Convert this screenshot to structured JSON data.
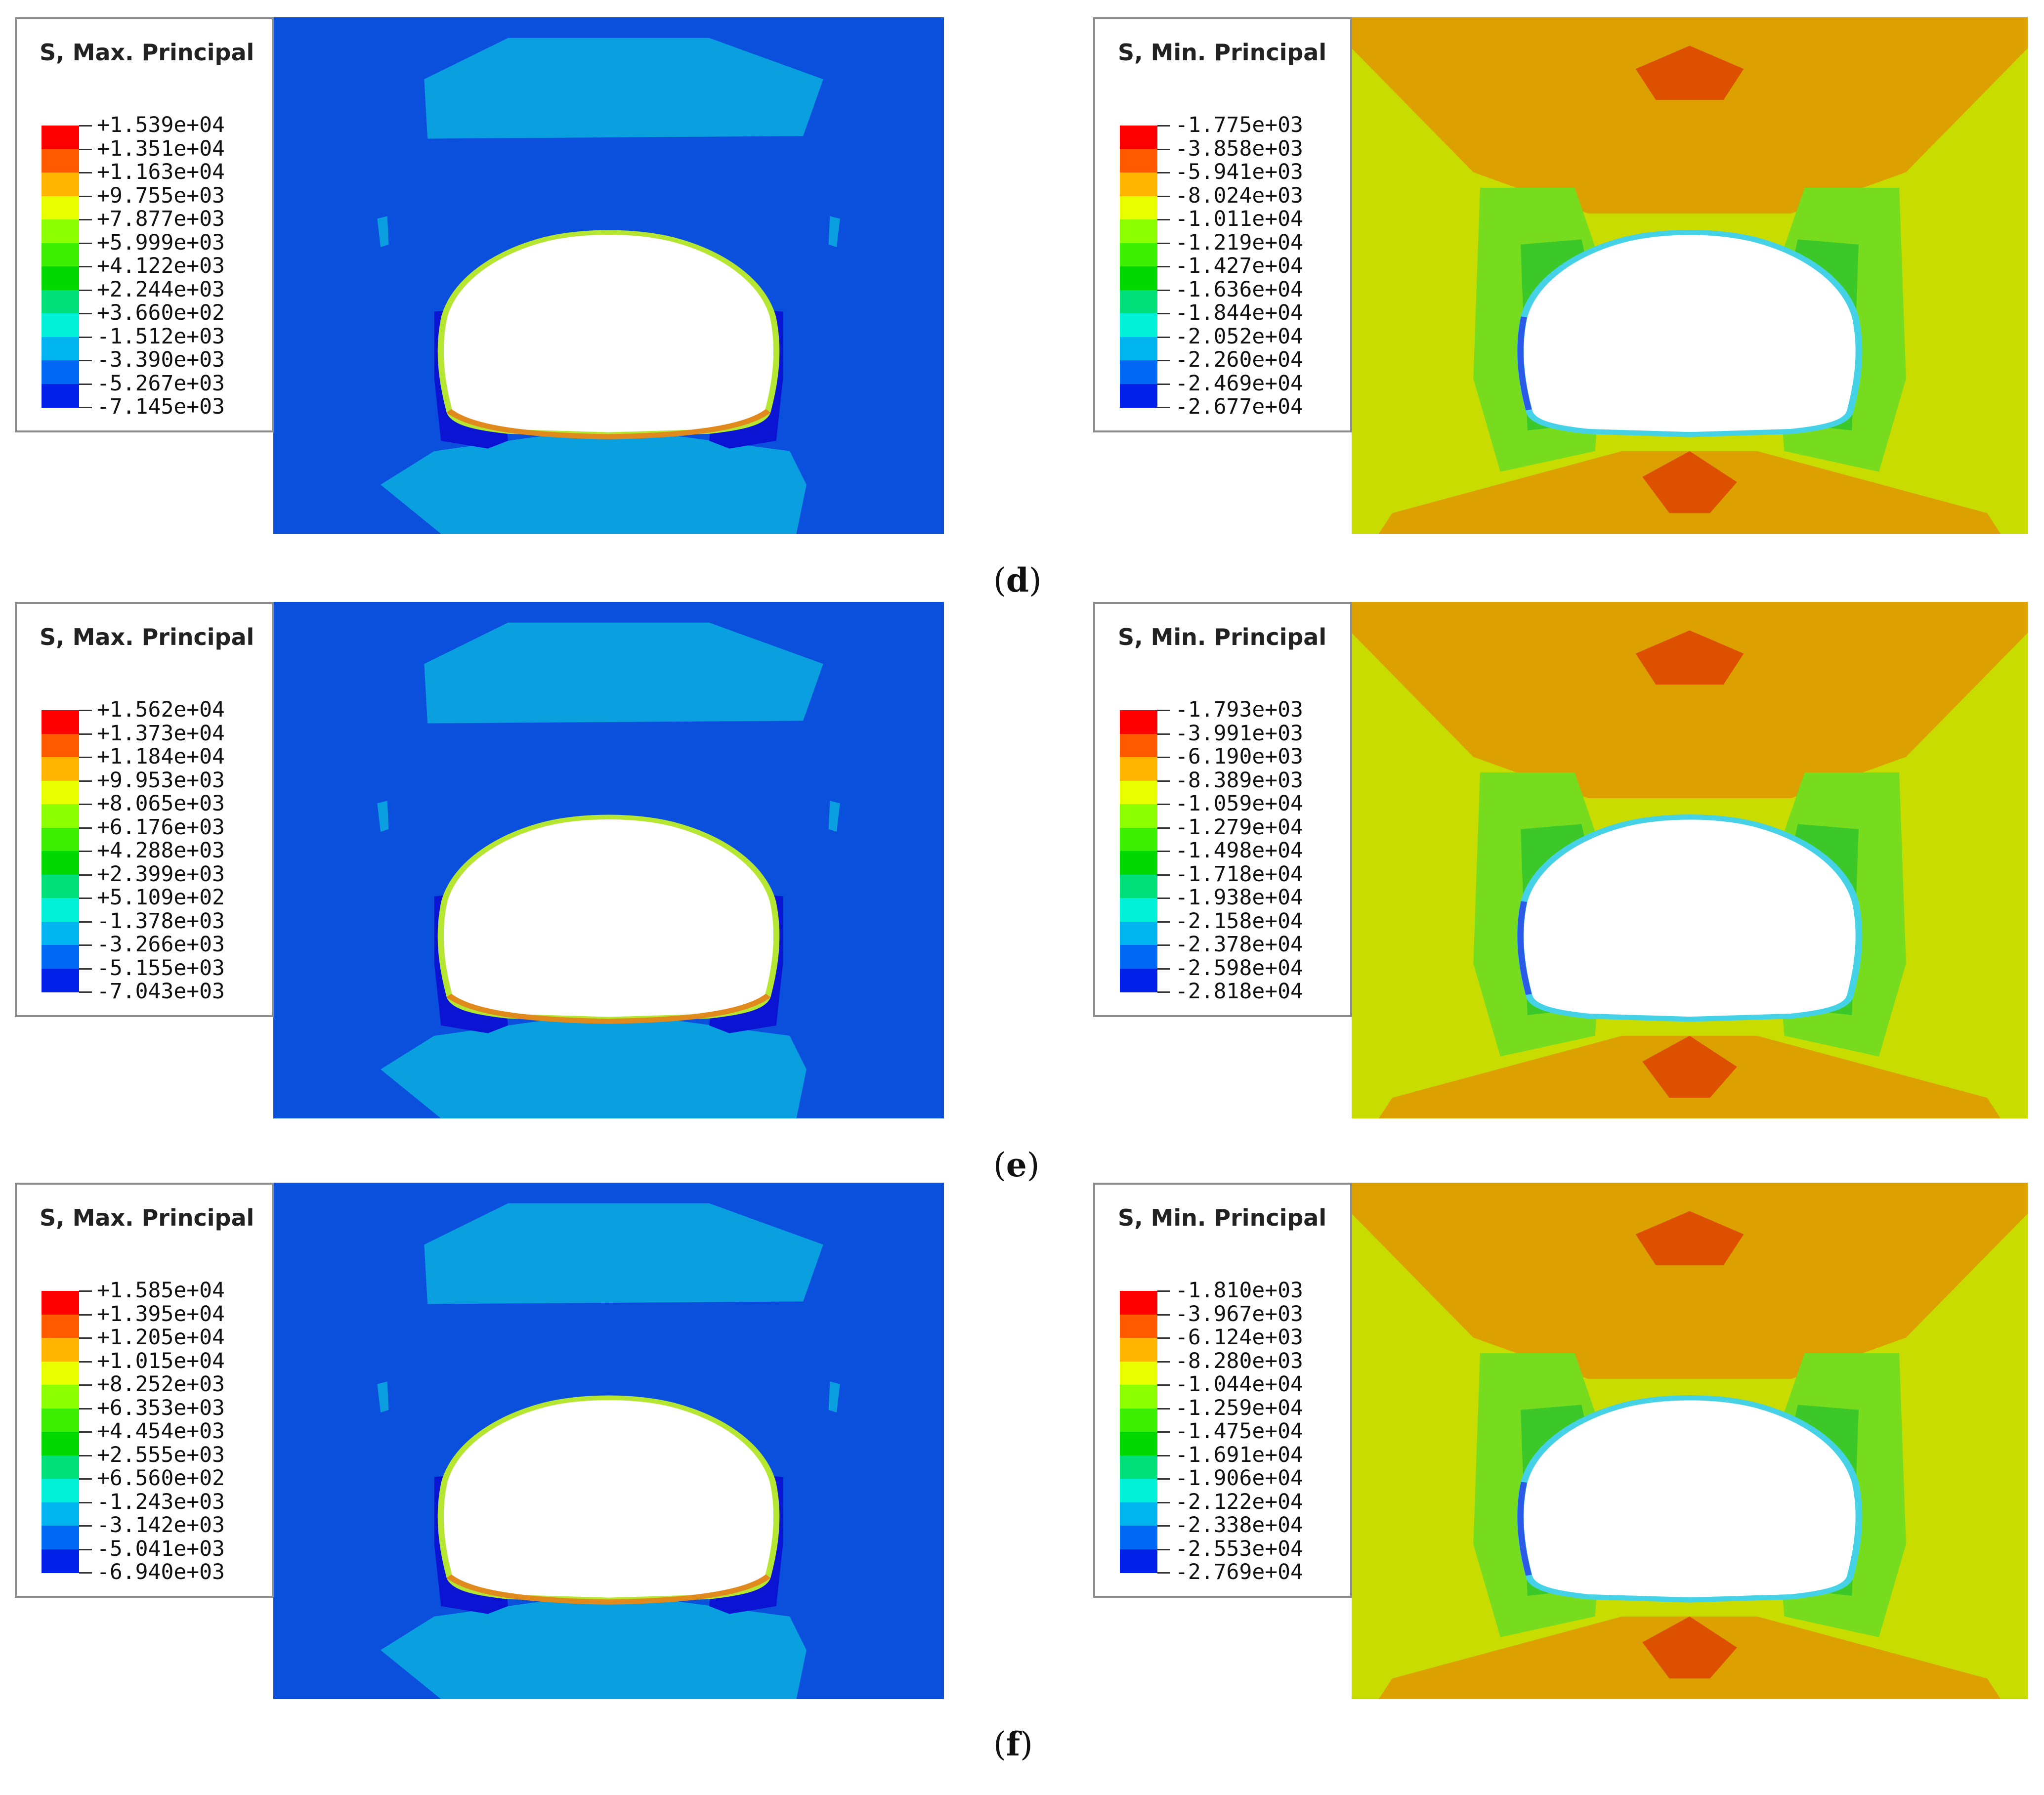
{
  "palette": [
    "#ff0000",
    "#ff5a00",
    "#ffb400",
    "#e8ff00",
    "#8cff00",
    "#3cef00",
    "#00d800",
    "#00e07a",
    "#00f0d8",
    "#00b4f0",
    "#0068f4",
    "#0020e8"
  ],
  "plot_colors": {
    "max_background": "#0a50dc",
    "max_light_zone": "#0aa0e0",
    "max_dark_zone": "#0a14d2",
    "max_rim": "#b4e632",
    "min_background": "#c8dc00",
    "min_orange": "#dca000",
    "min_red": "#dc5000",
    "min_green": "#78dc1e",
    "min_green2": "#3cc828",
    "min_teal": "#1ed296",
    "min_rim": "#46d2e6"
  },
  "rows": [
    {
      "caption": "d",
      "max_plot": {
        "title": "S, Max. Principal",
        "values": [
          "+1.539e+04",
          "+1.351e+04",
          "+1.163e+04",
          "+9.755e+03",
          "+7.877e+03",
          "+5.999e+03",
          "+4.122e+03",
          "+2.244e+03",
          "+3.660e+02",
          "-1.512e+03",
          "-3.390e+03",
          "-5.267e+03",
          "-7.145e+03"
        ]
      },
      "min_plot": {
        "title": "S, Min. Principal",
        "values": [
          "-1.775e+03",
          "-3.858e+03",
          "-5.941e+03",
          "-8.024e+03",
          "-1.011e+04",
          "-1.219e+04",
          "-1.427e+04",
          "-1.636e+04",
          "-1.844e+04",
          "-2.052e+04",
          "-2.260e+04",
          "-2.469e+04",
          "-2.677e+04"
        ]
      }
    },
    {
      "caption": "e",
      "max_plot": {
        "title": "S, Max. Principal",
        "values": [
          "+1.562e+04",
          "+1.373e+04",
          "+1.184e+04",
          "+9.953e+03",
          "+8.065e+03",
          "+6.176e+03",
          "+4.288e+03",
          "+2.399e+03",
          "+5.109e+02",
          "-1.378e+03",
          "-3.266e+03",
          "-5.155e+03",
          "-7.043e+03"
        ]
      },
      "min_plot": {
        "title": "S, Min. Principal",
        "values": [
          "-1.793e+03",
          "-3.991e+03",
          "-6.190e+03",
          "-8.389e+03",
          "-1.059e+04",
          "-1.279e+04",
          "-1.498e+04",
          "-1.718e+04",
          "-1.938e+04",
          "-2.158e+04",
          "-2.378e+04",
          "-2.598e+04",
          "-2.818e+04"
        ]
      }
    },
    {
      "caption": "f",
      "max_plot": {
        "title": "S, Max. Principal",
        "values": [
          "+1.585e+04",
          "+1.395e+04",
          "+1.205e+04",
          "+1.015e+04",
          "+8.252e+03",
          "+6.353e+03",
          "+4.454e+03",
          "+2.555e+03",
          "+6.560e+02",
          "-1.243e+03",
          "-3.142e+03",
          "-5.041e+03",
          "-6.940e+03"
        ]
      },
      "min_plot": {
        "title": "S, Min. Principal",
        "values": [
          "-1.810e+03",
          "-3.967e+03",
          "-6.124e+03",
          "-8.280e+03",
          "-1.044e+04",
          "-1.259e+04",
          "-1.475e+04",
          "-1.691e+04",
          "-1.906e+04",
          "-2.122e+04",
          "-2.338e+04",
          "-2.553e+04",
          "-2.769e+04"
        ]
      }
    }
  ]
}
